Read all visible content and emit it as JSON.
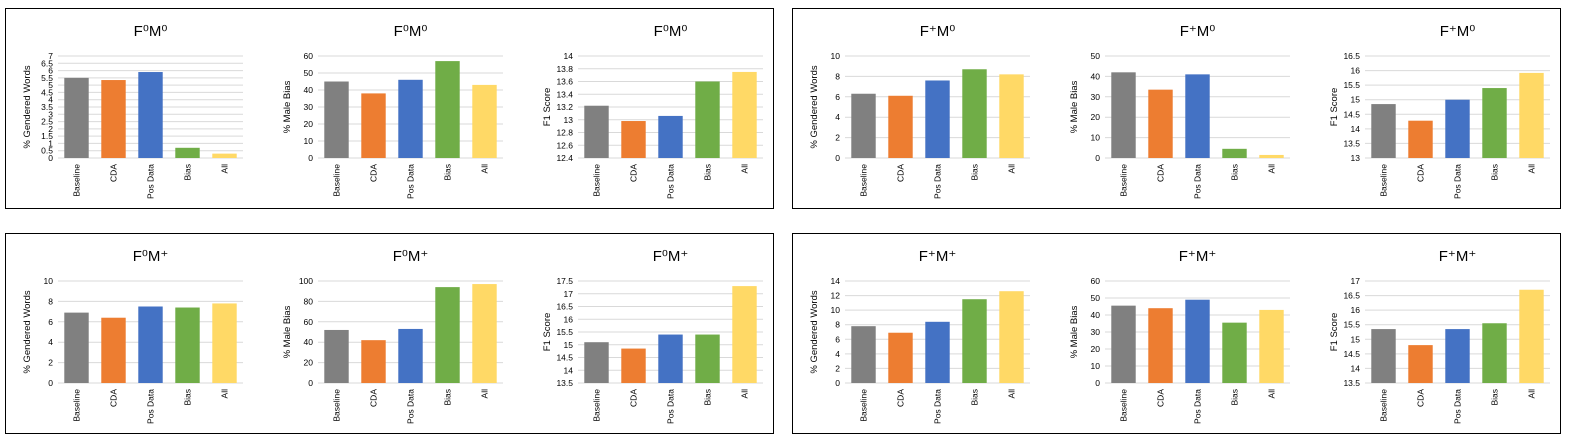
{
  "colors": {
    "baseline": "#808080",
    "cda": "#ed7d31",
    "pos_data": "#4472c4",
    "bias": "#70ad47",
    "all": "#ffd966"
  },
  "chart_data": [
    {
      "type": "bar",
      "title": "F⁰M⁰",
      "ylabel": "% Gendered Words",
      "categories": [
        "Baseline",
        "CDA",
        "Pos Data",
        "Bias",
        "All"
      ],
      "values": [
        5.5,
        5.35,
        5.9,
        0.7,
        0.3
      ],
      "ylim": [
        0,
        7
      ],
      "yticks": [
        "0",
        "0.5",
        "1",
        "1.5",
        "2",
        "2.5",
        "3",
        "3.5",
        "4",
        "4.5",
        "5",
        "5.5",
        "6",
        "6.5",
        "7"
      ],
      "grid": true
    },
    {
      "type": "bar",
      "title": "F⁰M⁰",
      "ylabel": "% Male Bias",
      "categories": [
        "Baseline",
        "CDA",
        "Pos Data",
        "Bias",
        "All"
      ],
      "values": [
        45,
        38,
        46,
        57,
        43
      ],
      "ylim": [
        0,
        60
      ],
      "yticks": [
        "0",
        "10",
        "20",
        "30",
        "40",
        "50",
        "60"
      ],
      "grid": true
    },
    {
      "type": "bar",
      "title": "F⁰M⁰",
      "ylabel": "F1 Score",
      "categories": [
        "Baseline",
        "CDA",
        "Pos Data",
        "Bias",
        "All"
      ],
      "values": [
        13.22,
        12.98,
        13.06,
        13.6,
        13.75
      ],
      "ylim": [
        12.4,
        14
      ],
      "yticks": [
        "12.4",
        "12.6",
        "12.8",
        "13",
        "13.2",
        "13.4",
        "13.6",
        "13.8",
        "14"
      ],
      "grid": true
    },
    {
      "type": "bar",
      "title": "F⁺M⁰",
      "ylabel": "% Gendered Words",
      "categories": [
        "Baseline",
        "CDA",
        "Pos Data",
        "Bias",
        "All"
      ],
      "values": [
        6.3,
        6.1,
        7.6,
        8.7,
        8.2
      ],
      "ylim": [
        0,
        10
      ],
      "yticks": [
        "0",
        "2",
        "4",
        "6",
        "8",
        "10"
      ],
      "grid": true
    },
    {
      "type": "bar",
      "title": "F⁺M⁰",
      "ylabel": "% Male Bias",
      "categories": [
        "Baseline",
        "CDA",
        "Pos Data",
        "Bias",
        "All"
      ],
      "values": [
        42,
        33.5,
        41,
        4.5,
        1.5
      ],
      "ylim": [
        0,
        50
      ],
      "yticks": [
        "0",
        "10",
        "20",
        "30",
        "40",
        "50"
      ],
      "grid": true
    },
    {
      "type": "bar",
      "title": "F⁺M⁰",
      "ylabel": "F1 Score",
      "categories": [
        "Baseline",
        "CDA",
        "Pos Data",
        "Bias",
        "All"
      ],
      "values": [
        14.85,
        14.28,
        15,
        15.4,
        15.92
      ],
      "ylim": [
        13,
        16.5
      ],
      "yticks": [
        "13",
        "13.5",
        "14",
        "14.5",
        "15",
        "15.5",
        "16",
        "16.5"
      ],
      "grid": true
    },
    {
      "type": "bar",
      "title": "F⁰M⁺",
      "ylabel": "% Gendered Words",
      "categories": [
        "Baseline",
        "CDA",
        "Pos Data",
        "Bias",
        "All"
      ],
      "values": [
        6.9,
        6.4,
        7.5,
        7.4,
        7.8
      ],
      "ylim": [
        0,
        10
      ],
      "yticks": [
        "0",
        "2",
        "4",
        "6",
        "8",
        "10"
      ],
      "grid": true
    },
    {
      "type": "bar",
      "title": "F⁰M⁺",
      "ylabel": "% Male Bias",
      "categories": [
        "Baseline",
        "CDA",
        "Pos Data",
        "Bias",
        "All"
      ],
      "values": [
        52,
        42,
        53,
        94,
        97
      ],
      "ylim": [
        0,
        100
      ],
      "yticks": [
        "0",
        "20",
        "40",
        "60",
        "80",
        "100"
      ],
      "grid": true
    },
    {
      "type": "bar",
      "title": "F⁰M⁺",
      "ylabel": "F1 Score",
      "categories": [
        "Baseline",
        "CDA",
        "Pos Data",
        "Bias",
        "All"
      ],
      "values": [
        15.1,
        14.85,
        15.4,
        15.4,
        17.3
      ],
      "ylim": [
        13.5,
        17.5
      ],
      "yticks": [
        "13.5",
        "14",
        "14.5",
        "15",
        "15.5",
        "16",
        "16.5",
        "17",
        "17.5"
      ],
      "grid": true
    },
    {
      "type": "bar",
      "title": "F⁺M⁺",
      "ylabel": "% Gendered Words",
      "categories": [
        "Baseline",
        "CDA",
        "Pos Data",
        "Bias",
        "All"
      ],
      "values": [
        7.8,
        6.9,
        8.4,
        11.5,
        12.6
      ],
      "ylim": [
        0,
        14
      ],
      "yticks": [
        "0",
        "2",
        "4",
        "6",
        "8",
        "10",
        "12",
        "14"
      ],
      "grid": true
    },
    {
      "type": "bar",
      "title": "F⁺M⁺",
      "ylabel": "% Male Bias",
      "categories": [
        "Baseline",
        "CDA",
        "Pos Data",
        "Bias",
        "All"
      ],
      "values": [
        45.5,
        44,
        49,
        35.5,
        43
      ],
      "ylim": [
        0,
        60
      ],
      "yticks": [
        "0",
        "10",
        "20",
        "30",
        "40",
        "50",
        "60"
      ],
      "grid": true
    },
    {
      "type": "bar",
      "title": "F⁺M⁺",
      "ylabel": "F1 Score",
      "categories": [
        "Baseline",
        "CDA",
        "Pos Data",
        "Bias",
        "All"
      ],
      "values": [
        15.35,
        14.8,
        15.35,
        15.55,
        16.7
      ],
      "ylim": [
        13.5,
        17
      ],
      "yticks": [
        "13.5",
        "14",
        "14.5",
        "15",
        "15.5",
        "16",
        "16.5",
        "17"
      ],
      "grid": true
    }
  ]
}
